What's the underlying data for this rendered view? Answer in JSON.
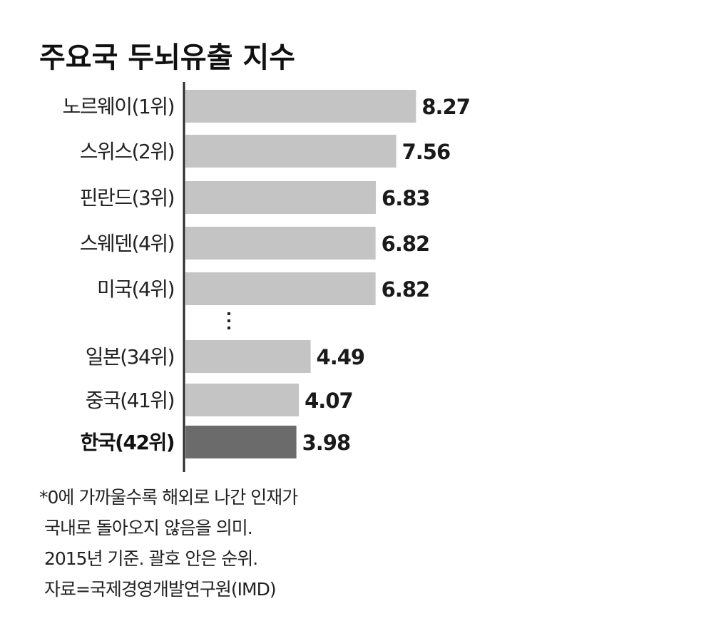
{
  "chart_data": {
    "type": "bar",
    "orientation": "horizontal",
    "title": "주요국 두뇌유출 지수",
    "categories": [
      "노르웨이(1위)",
      "스위스(2위)",
      "핀란드(3위)",
      "스웨덴(4위)",
      "미국(4위)",
      "일본(34위)",
      "중국(41위)",
      "한국(42위)"
    ],
    "values": [
      8.27,
      7.56,
      6.83,
      6.82,
      6.82,
      4.49,
      4.07,
      3.98
    ],
    "value_labels": [
      "8.27",
      "7.56",
      "6.83",
      "6.82",
      "6.82",
      "4.49",
      "4.07",
      "3.98"
    ],
    "highlight_category": "한국(42위)",
    "gap_after_index": 4,
    "xlim": [
      0,
      10
    ],
    "grid": false,
    "legend": "none",
    "colors": {
      "bar": "#c4c4c4",
      "highlight_bar": "#6b6b6b",
      "axis": "#2a2a2a"
    }
  },
  "notes": [
    "*0에 가까울수록 해외로 나간 인재가",
    " 국내로 돌아오지 않음을 의미.",
    " 2015년 기준. 괄호 안은 순위.",
    " 자료=국제경영개발연구원(IMD)"
  ]
}
